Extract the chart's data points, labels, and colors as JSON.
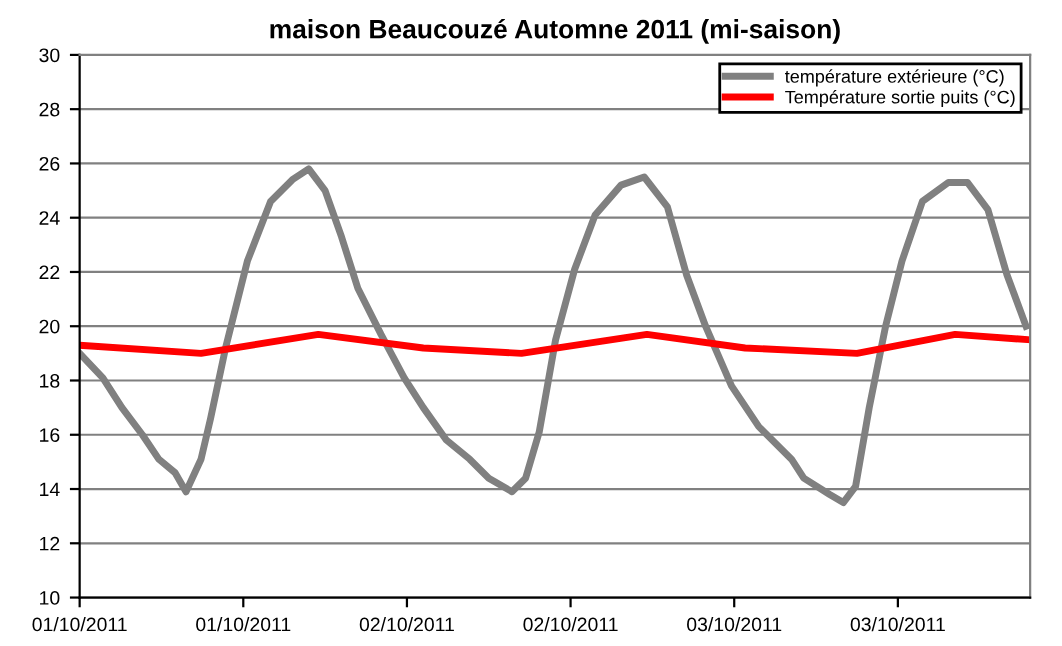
{
  "chart_data": {
    "type": "line",
    "title": "maison Beaucouzé Automne 2011 (mi-saison)",
    "xlim": [
      "2011-10-01T00:00",
      "2011-10-03T21:42"
    ],
    "ylim": [
      10,
      30
    ],
    "xticks": [
      {
        "value": "2011-10-01T00:00",
        "label": "01/10/2011"
      },
      {
        "value": "2011-10-01T12:00",
        "label": "01/10/2011"
      },
      {
        "value": "2011-10-02T00:00",
        "label": "02/10/2011"
      },
      {
        "value": "2011-10-02T12:00",
        "label": "02/10/2011"
      },
      {
        "value": "2011-10-03T00:00",
        "label": "03/10/2011"
      },
      {
        "value": "2011-10-03T12:00",
        "label": "03/10/2011"
      }
    ],
    "yticks": [
      10,
      12,
      14,
      16,
      18,
      20,
      22,
      24,
      26,
      28,
      30
    ],
    "grid": "y",
    "legend": "top right",
    "marker": "none",
    "line_style": "solid",
    "series": [
      {
        "name": "température extérieure (°C)",
        "color": "#808080",
        "x": [
          "2011-10-01T00:00",
          "2011-10-01T01:42",
          "2011-10-01T03:06",
          "2011-10-01T04:36",
          "2011-10-01T05:48",
          "2011-10-01T07:00",
          "2011-10-01T07:48",
          "2011-10-01T08:54",
          "2011-10-01T09:36",
          "2011-10-01T10:42",
          "2011-10-01T12:18",
          "2011-10-01T14:00",
          "2011-10-01T15:36",
          "2011-10-01T16:48",
          "2011-10-01T18:00",
          "2011-10-01T19:12",
          "2011-10-01T20:24",
          "2011-10-01T22:06",
          "2011-10-01T23:48",
          "2011-10-02T01:12",
          "2011-10-02T02:54",
          "2011-10-02T04:36",
          "2011-10-02T06:00",
          "2011-10-02T07:42",
          "2011-10-02T08:42",
          "2011-10-02T09:42",
          "2011-10-02T10:54",
          "2011-10-02T12:18",
          "2011-10-02T13:48",
          "2011-10-02T15:42",
          "2011-10-02T17:24",
          "2011-10-02T19:06",
          "2011-10-02T20:30",
          "2011-10-02T21:54",
          "2011-10-02T23:48",
          "2011-10-03T01:48",
          "2011-10-03T04:12",
          "2011-10-03T05:06",
          "2011-10-03T07:00",
          "2011-10-03T08:00",
          "2011-10-03T08:54",
          "2011-10-03T09:54",
          "2011-10-03T11:06",
          "2011-10-03T12:18",
          "2011-10-03T13:48",
          "2011-10-03T15:42",
          "2011-10-03T17:06",
          "2011-10-03T18:36",
          "2011-10-03T20:00",
          "2011-10-03T21:24"
        ],
        "values": [
          19.0,
          18.1,
          17.0,
          16.0,
          15.1,
          14.6,
          13.9,
          15.1,
          16.6,
          19.2,
          22.4,
          24.6,
          25.4,
          25.8,
          25.0,
          23.3,
          21.4,
          19.7,
          18.1,
          17.0,
          15.8,
          15.1,
          14.4,
          13.9,
          14.4,
          16.1,
          19.5,
          22.1,
          24.1,
          25.2,
          25.5,
          24.4,
          21.9,
          20.0,
          17.8,
          16.3,
          15.1,
          14.4,
          13.8,
          13.5,
          14.1,
          17.0,
          20.0,
          22.4,
          24.6,
          25.3,
          25.3,
          24.3,
          21.9,
          20.0
        ]
      },
      {
        "name": "Température sortie puits (°C)",
        "color": "#ff0000",
        "x": [
          "2011-10-01T00:00",
          "2011-10-01T08:54",
          "2011-10-01T17:30",
          "2011-10-02T01:12",
          "2011-10-02T08:24",
          "2011-10-02T17:36",
          "2011-10-03T00:48",
          "2011-10-03T09:00",
          "2011-10-03T16:12",
          "2011-10-03T21:42"
        ],
        "values": [
          19.3,
          19.0,
          19.7,
          19.2,
          19.0,
          19.7,
          19.2,
          19.0,
          19.7,
          19.5
        ]
      }
    ]
  }
}
